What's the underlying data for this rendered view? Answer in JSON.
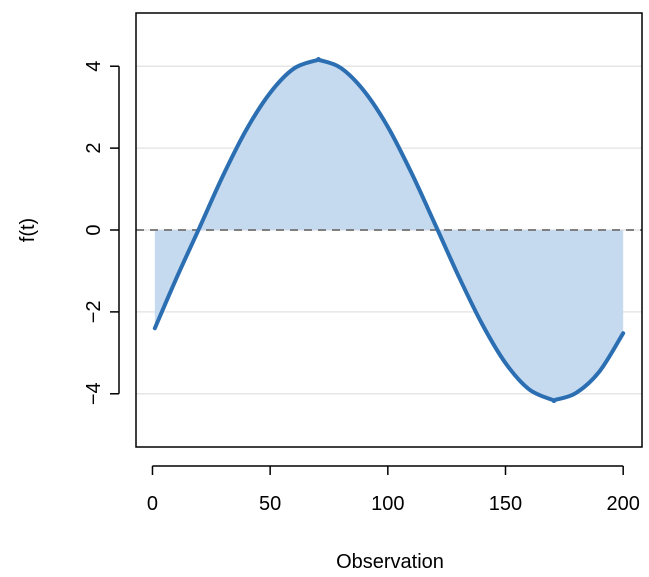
{
  "chart_data": {
    "type": "area",
    "title": "",
    "xlabel": "Observation",
    "ylabel": "f(t)",
    "xlim": [
      -7,
      208
    ],
    "ylim": [
      -5.3,
      5.3
    ],
    "x_ticks": [
      0,
      50,
      100,
      150,
      200
    ],
    "y_ticks": [
      -4,
      -2,
      0,
      2,
      4
    ],
    "x_tick_labels": [
      "0",
      "50",
      "100",
      "150",
      "200"
    ],
    "y_tick_labels": [
      "−4",
      "−2",
      "0",
      "2",
      "4"
    ],
    "grid": "horizontal",
    "baseline": 0,
    "series": [
      {
        "x": [
          1,
          10,
          20,
          30,
          40,
          50,
          60,
          70,
          71,
          80,
          90,
          100,
          110,
          120,
          130,
          140,
          150,
          160,
          170,
          171,
          180,
          190,
          200
        ],
        "values": [
          -2.4,
          -1.2,
          0.06,
          1.33,
          2.46,
          3.35,
          3.94,
          4.15,
          4.15,
          3.96,
          3.39,
          2.52,
          1.4,
          0.15,
          -1.12,
          -2.29,
          -3.25,
          -3.89,
          -4.15,
          -4.15,
          -3.98,
          -3.45,
          -2.52
        ]
      }
    ],
    "colors": {
      "line": "#2b6fb2",
      "fill": "#c5d9ef",
      "baseline": "#808080",
      "grid": "#e6e6e6",
      "axis": "#000000"
    }
  }
}
